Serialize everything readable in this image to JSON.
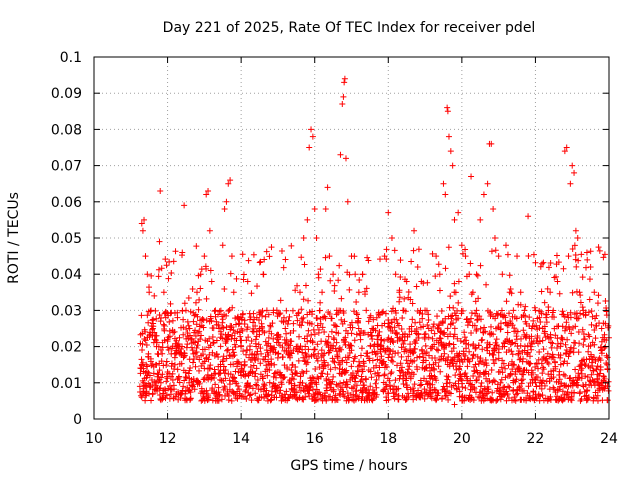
{
  "chart_data": {
    "type": "scatter",
    "title": "Day 221 of 2025, Rate Of TEC Index for receiver pdel",
    "xlabel": "GPS time / hours",
    "ylabel": "ROTI / TECUs",
    "xlim": [
      10,
      24
    ],
    "ylim": [
      0,
      0.1
    ],
    "x_ticks": [
      10,
      12,
      14,
      16,
      18,
      20,
      22,
      24
    ],
    "x_tick_labels": [
      "10",
      "12",
      "14",
      "16",
      "18",
      "20",
      "22",
      "24"
    ],
    "y_ticks": [
      0,
      0.01,
      0.02,
      0.03,
      0.04,
      0.05,
      0.06,
      0.07,
      0.08,
      0.09,
      0.1
    ],
    "y_tick_labels": [
      "0",
      "0.01",
      "0.02",
      "0.03",
      "0.04",
      "0.05",
      "0.06",
      "0.07",
      "0.08",
      "0.09",
      "0.1"
    ],
    "grid": true,
    "marker": "+",
    "series": [
      {
        "name": "ROTI",
        "color": "#ff0000",
        "points": [
          [
            11.3,
            0.054
          ],
          [
            11.33,
            0.052
          ],
          [
            11.36,
            0.055
          ],
          [
            11.4,
            0.045
          ],
          [
            11.45,
            0.04
          ],
          [
            11.5,
            0.035
          ],
          [
            11.55,
            0.03
          ],
          [
            11.6,
            0.025
          ],
          [
            11.65,
            0.022
          ],
          [
            11.7,
            0.02
          ],
          [
            11.3,
            0.006
          ],
          [
            11.35,
            0.01
          ],
          [
            11.42,
            0.015
          ],
          [
            11.48,
            0.018
          ],
          [
            11.52,
            0.012
          ],
          [
            11.8,
            0.063
          ],
          [
            11.78,
            0.049
          ],
          [
            11.9,
            0.035
          ],
          [
            11.95,
            0.028
          ],
          [
            12.0,
            0.022
          ],
          [
            12.1,
            0.018
          ],
          [
            12.2,
            0.015
          ],
          [
            12.3,
            0.02
          ],
          [
            12.4,
            0.046
          ],
          [
            12.45,
            0.059
          ],
          [
            12.5,
            0.03
          ],
          [
            12.6,
            0.025
          ],
          [
            12.7,
            0.018
          ],
          [
            12.8,
            0.035
          ],
          [
            12.9,
            0.04
          ],
          [
            13.0,
            0.045
          ],
          [
            13.05,
            0.062
          ],
          [
            13.1,
            0.063
          ],
          [
            13.15,
            0.052
          ],
          [
            13.2,
            0.038
          ],
          [
            13.3,
            0.03
          ],
          [
            13.4,
            0.025
          ],
          [
            13.5,
            0.048
          ],
          [
            13.55,
            0.058
          ],
          [
            13.6,
            0.06
          ],
          [
            13.65,
            0.065
          ],
          [
            13.7,
            0.066
          ],
          [
            13.75,
            0.045
          ],
          [
            13.8,
            0.035
          ],
          [
            13.9,
            0.028
          ],
          [
            14.0,
            0.02
          ],
          [
            14.1,
            0.015
          ],
          [
            14.2,
            0.012
          ],
          [
            14.3,
            0.018
          ],
          [
            14.4,
            0.022
          ],
          [
            14.5,
            0.025
          ],
          [
            14.6,
            0.04
          ],
          [
            14.7,
            0.03
          ],
          [
            14.8,
            0.02
          ],
          [
            14.9,
            0.015
          ],
          [
            15.0,
            0.022
          ],
          [
            15.1,
            0.012
          ],
          [
            15.2,
            0.025
          ],
          [
            15.3,
            0.018
          ],
          [
            15.4,
            0.015
          ],
          [
            15.5,
            0.02
          ],
          [
            15.6,
            0.035
          ],
          [
            15.7,
            0.05
          ],
          [
            15.8,
            0.055
          ],
          [
            15.85,
            0.075
          ],
          [
            15.9,
            0.08
          ],
          [
            15.95,
            0.078
          ],
          [
            16.0,
            0.058
          ],
          [
            16.05,
            0.05
          ],
          [
            16.1,
            0.04
          ],
          [
            16.2,
            0.035
          ],
          [
            16.3,
            0.058
          ],
          [
            16.35,
            0.064
          ],
          [
            16.4,
            0.045
          ],
          [
            16.5,
            0.04
          ],
          [
            16.6,
            0.03
          ],
          [
            16.7,
            0.073
          ],
          [
            16.75,
            0.087
          ],
          [
            16.78,
            0.089
          ],
          [
            16.8,
            0.093
          ],
          [
            16.82,
            0.094
          ],
          [
            16.85,
            0.072
          ],
          [
            16.9,
            0.06
          ],
          [
            17.0,
            0.045
          ],
          [
            17.1,
            0.04
          ],
          [
            17.2,
            0.035
          ],
          [
            17.3,
            0.04
          ],
          [
            17.4,
            0.03
          ],
          [
            17.5,
            0.028
          ],
          [
            17.6,
            0.025
          ],
          [
            17.7,
            0.022
          ],
          [
            17.8,
            0.02
          ],
          [
            17.9,
            0.045
          ],
          [
            18.0,
            0.057
          ],
          [
            18.1,
            0.05
          ],
          [
            18.2,
            0.04
          ],
          [
            18.3,
            0.035
          ],
          [
            18.4,
            0.03
          ],
          [
            18.5,
            0.038
          ],
          [
            18.6,
            0.033
          ],
          [
            18.7,
            0.052
          ],
          [
            18.8,
            0.042
          ],
          [
            18.9,
            0.038
          ],
          [
            19.0,
            0.03
          ],
          [
            19.1,
            0.025
          ],
          [
            19.2,
            0.02
          ],
          [
            19.3,
            0.045
          ],
          [
            19.4,
            0.04
          ],
          [
            19.5,
            0.065
          ],
          [
            19.55,
            0.062
          ],
          [
            19.6,
            0.086
          ],
          [
            19.62,
            0.085
          ],
          [
            19.65,
            0.078
          ],
          [
            19.7,
            0.074
          ],
          [
            19.75,
            0.07
          ],
          [
            19.8,
            0.055
          ],
          [
            19.9,
            0.057
          ],
          [
            20.0,
            0.048
          ],
          [
            20.1,
            0.045
          ],
          [
            20.2,
            0.04
          ],
          [
            20.25,
            0.067
          ],
          [
            20.3,
            0.035
          ],
          [
            20.4,
            0.03
          ],
          [
            20.5,
            0.055
          ],
          [
            20.6,
            0.062
          ],
          [
            20.7,
            0.065
          ],
          [
            20.75,
            0.076
          ],
          [
            20.8,
            0.076
          ],
          [
            20.85,
            0.058
          ],
          [
            20.9,
            0.05
          ],
          [
            21.0,
            0.045
          ],
          [
            21.1,
            0.04
          ],
          [
            21.2,
            0.048
          ],
          [
            21.3,
            0.035
          ],
          [
            21.4,
            0.03
          ],
          [
            21.5,
            0.045
          ],
          [
            21.6,
            0.035
          ],
          [
            21.7,
            0.03
          ],
          [
            21.8,
            0.056
          ],
          [
            21.9,
            0.025
          ],
          [
            22.0,
            0.03
          ],
          [
            22.2,
            0.025
          ],
          [
            22.4,
            0.035
          ],
          [
            22.6,
            0.038
          ],
          [
            22.8,
            0.074
          ],
          [
            22.85,
            0.075
          ],
          [
            22.9,
            0.045
          ],
          [
            22.95,
            0.065
          ],
          [
            23.0,
            0.07
          ],
          [
            23.05,
            0.068
          ],
          [
            23.1,
            0.052
          ],
          [
            23.15,
            0.05
          ],
          [
            23.2,
            0.035
          ],
          [
            23.3,
            0.03
          ],
          [
            23.4,
            0.046
          ],
          [
            23.5,
            0.042
          ],
          [
            23.6,
            0.035
          ],
          [
            23.7,
            0.032
          ],
          [
            23.8,
            0.025
          ],
          [
            23.9,
            0.02
          ],
          [
            23.95,
            0.015
          ],
          [
            23.7,
            0.005
          ],
          [
            23.75,
            0.008
          ],
          [
            22.7,
            0.006
          ],
          [
            21.4,
            0.008
          ],
          [
            20.0,
            0.006
          ],
          [
            19.8,
            0.004
          ],
          [
            18.5,
            0.006
          ],
          [
            17.3,
            0.008
          ],
          [
            16.0,
            0.005
          ],
          [
            14.9,
            0.006
          ],
          [
            13.8,
            0.007
          ],
          [
            12.6,
            0.008
          ],
          [
            11.6,
            0.007
          ],
          [
            22.0,
            0.011
          ],
          [
            21.0,
            0.013
          ],
          [
            20.5,
            0.016
          ],
          [
            19.0,
            0.014
          ],
          [
            18.0,
            0.017
          ],
          [
            17.0,
            0.019
          ],
          [
            16.5,
            0.016
          ],
          [
            15.0,
            0.013
          ],
          [
            14.0,
            0.012
          ],
          [
            13.0,
            0.014
          ],
          [
            12.0,
            0.013
          ]
        ],
        "band": {
          "x_range": [
            11.25,
            24.0
          ],
          "dense_y_range": [
            0.005,
            0.03
          ],
          "note": "dense cloud of ROTI samples across the observation window"
        }
      }
    ]
  }
}
